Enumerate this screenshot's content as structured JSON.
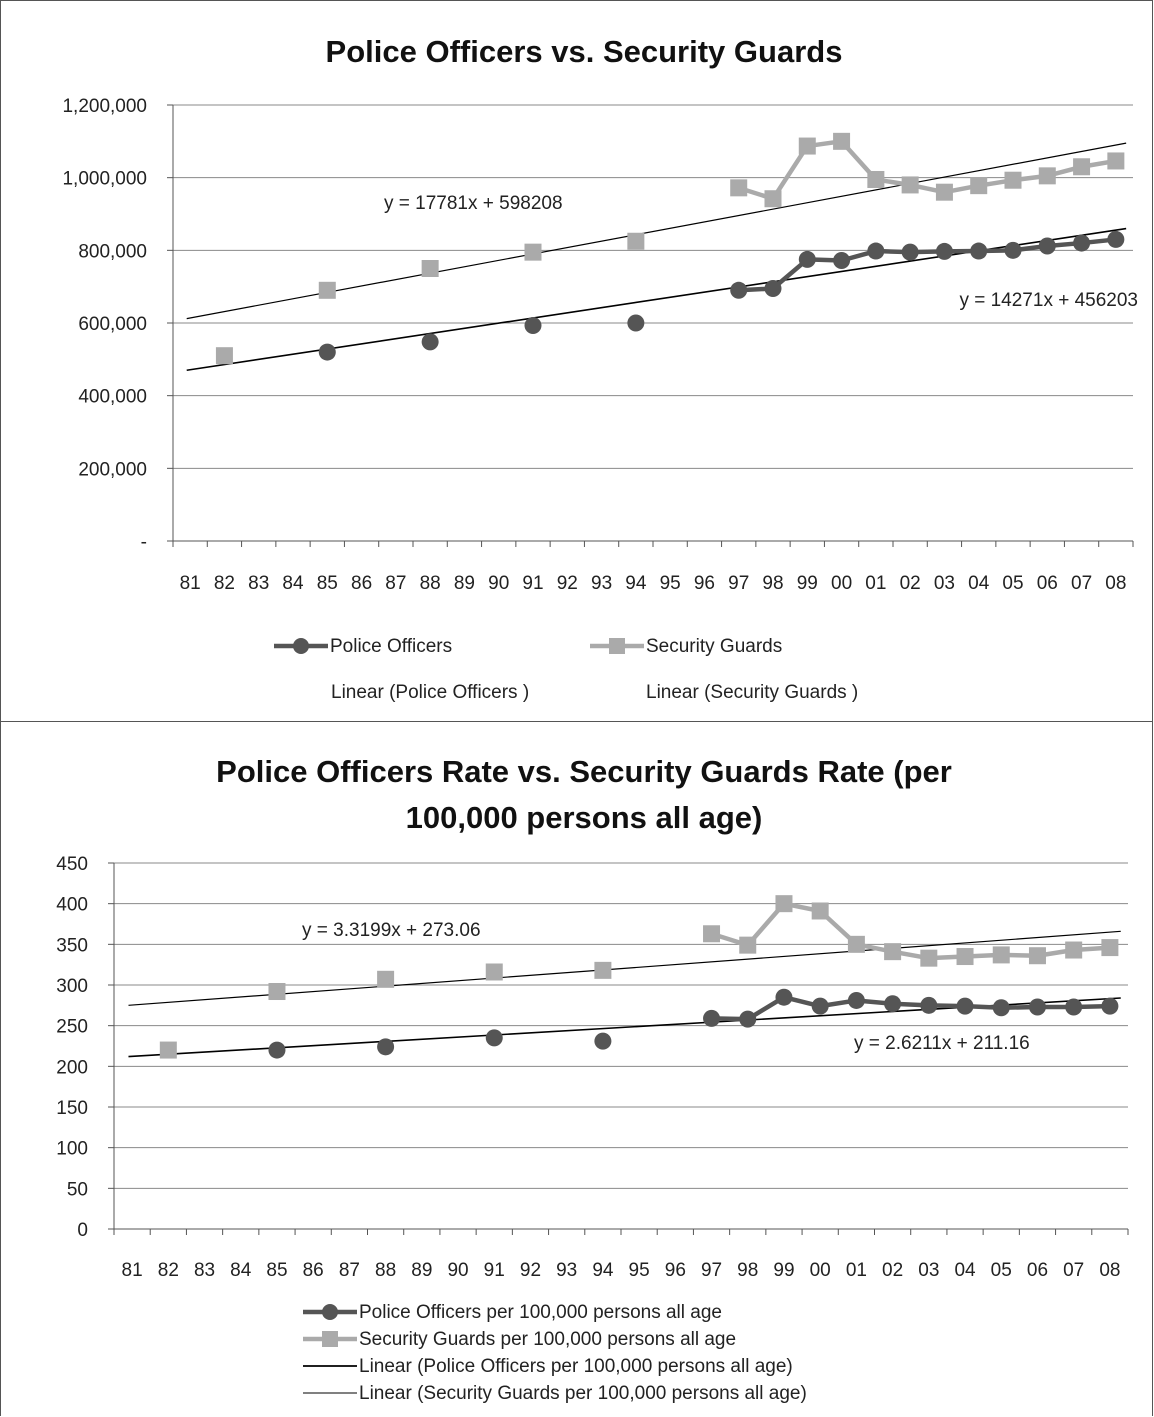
{
  "chart_data": [
    {
      "type": "line",
      "title": "Police Officers vs. Security Guards",
      "xlabel": "",
      "ylabel": "",
      "categories": [
        "81",
        "82",
        "83",
        "84",
        "85",
        "86",
        "87",
        "88",
        "89",
        "90",
        "91",
        "92",
        "93",
        "94",
        "95",
        "96",
        "97",
        "98",
        "99",
        "00",
        "01",
        "02",
        "03",
        "04",
        "05",
        "06",
        "07",
        "08"
      ],
      "yticks": [
        "-",
        "200,000",
        "400,000",
        "600,000",
        "800,000",
        "1,000,000",
        "1,200,000"
      ],
      "ylim": [
        0,
        1200000
      ],
      "grid": true,
      "legend_position": "bottom",
      "series": [
        {
          "name": "Police Officers",
          "color": "#555555",
          "marker": "circle",
          "values": [
            null,
            null,
            null,
            null,
            520000,
            null,
            null,
            548000,
            null,
            null,
            593000,
            null,
            null,
            600000,
            null,
            null,
            690000,
            695000,
            775000,
            772000,
            798000,
            795000,
            797000,
            798000,
            800000,
            812000,
            820000,
            830000
          ]
        },
        {
          "name": "Security Guards",
          "color": "#aaaaaa",
          "marker": "square",
          "values": [
            null,
            510000,
            null,
            null,
            690000,
            null,
            null,
            750000,
            null,
            null,
            795000,
            null,
            null,
            825000,
            null,
            null,
            972000,
            942000,
            1087000,
            1100000,
            995000,
            980000,
            960000,
            978000,
            993000,
            1005000,
            1030000,
            1046000
          ]
        }
      ],
      "trendlines": [
        {
          "name": "Linear (Police Officers )",
          "equation": "y = 14271x + 456203",
          "x0": 0,
          "y0": 470000,
          "x1": 27.3,
          "y1": 860000
        },
        {
          "name": "Linear (Security Guards )",
          "equation": "y = 17781x + 598208",
          "x0": 0,
          "y0": 612000,
          "x1": 27.3,
          "y1": 1095000
        }
      ]
    },
    {
      "type": "line",
      "title": "Police Officers Rate vs. Security Guards Rate (per 100,000 persons all age)",
      "title_line1": "Police Officers Rate vs. Security Guards Rate (per",
      "title_line2": "100,000 persons all age)",
      "xlabel": "",
      "ylabel": "",
      "categories": [
        "81",
        "82",
        "83",
        "84",
        "85",
        "86",
        "87",
        "88",
        "89",
        "90",
        "91",
        "92",
        "93",
        "94",
        "95",
        "96",
        "97",
        "98",
        "99",
        "00",
        "01",
        "02",
        "03",
        "04",
        "05",
        "06",
        "07",
        "08"
      ],
      "yticks": [
        "0",
        "50",
        "100",
        "150",
        "200",
        "250",
        "300",
        "350",
        "400",
        "450"
      ],
      "ylim": [
        0,
        450
      ],
      "grid": true,
      "legend_position": "bottom",
      "series": [
        {
          "name": "Police Officers per 100,000 persons all age",
          "color": "#555555",
          "marker": "circle",
          "values": [
            null,
            null,
            null,
            null,
            220,
            null,
            null,
            224,
            null,
            null,
            235,
            null,
            null,
            231,
            null,
            null,
            259,
            258,
            285,
            274,
            281,
            277,
            275,
            274,
            272,
            273,
            273,
            274
          ]
        },
        {
          "name": "Security Guards per 100,000 persons all age",
          "color": "#aaaaaa",
          "marker": "square",
          "values": [
            null,
            220,
            null,
            null,
            292,
            null,
            null,
            307,
            null,
            null,
            316,
            null,
            null,
            318,
            null,
            null,
            363,
            349,
            400,
            391,
            350,
            341,
            333,
            335,
            337,
            336,
            343,
            346
          ]
        }
      ],
      "trendlines": [
        {
          "name": "Linear (Police Officers per 100,000 persons all age)",
          "equation": "y = 2.6211x + 211.16",
          "x0": 0,
          "y0": 212,
          "x1": 27.3,
          "y1": 284
        },
        {
          "name": "Linear (Security Guards per 100,000 persons all age)",
          "equation": "y = 3.3199x + 273.06",
          "x0": 0,
          "y0": 275,
          "x1": 27.3,
          "y1": 366
        }
      ]
    }
  ]
}
